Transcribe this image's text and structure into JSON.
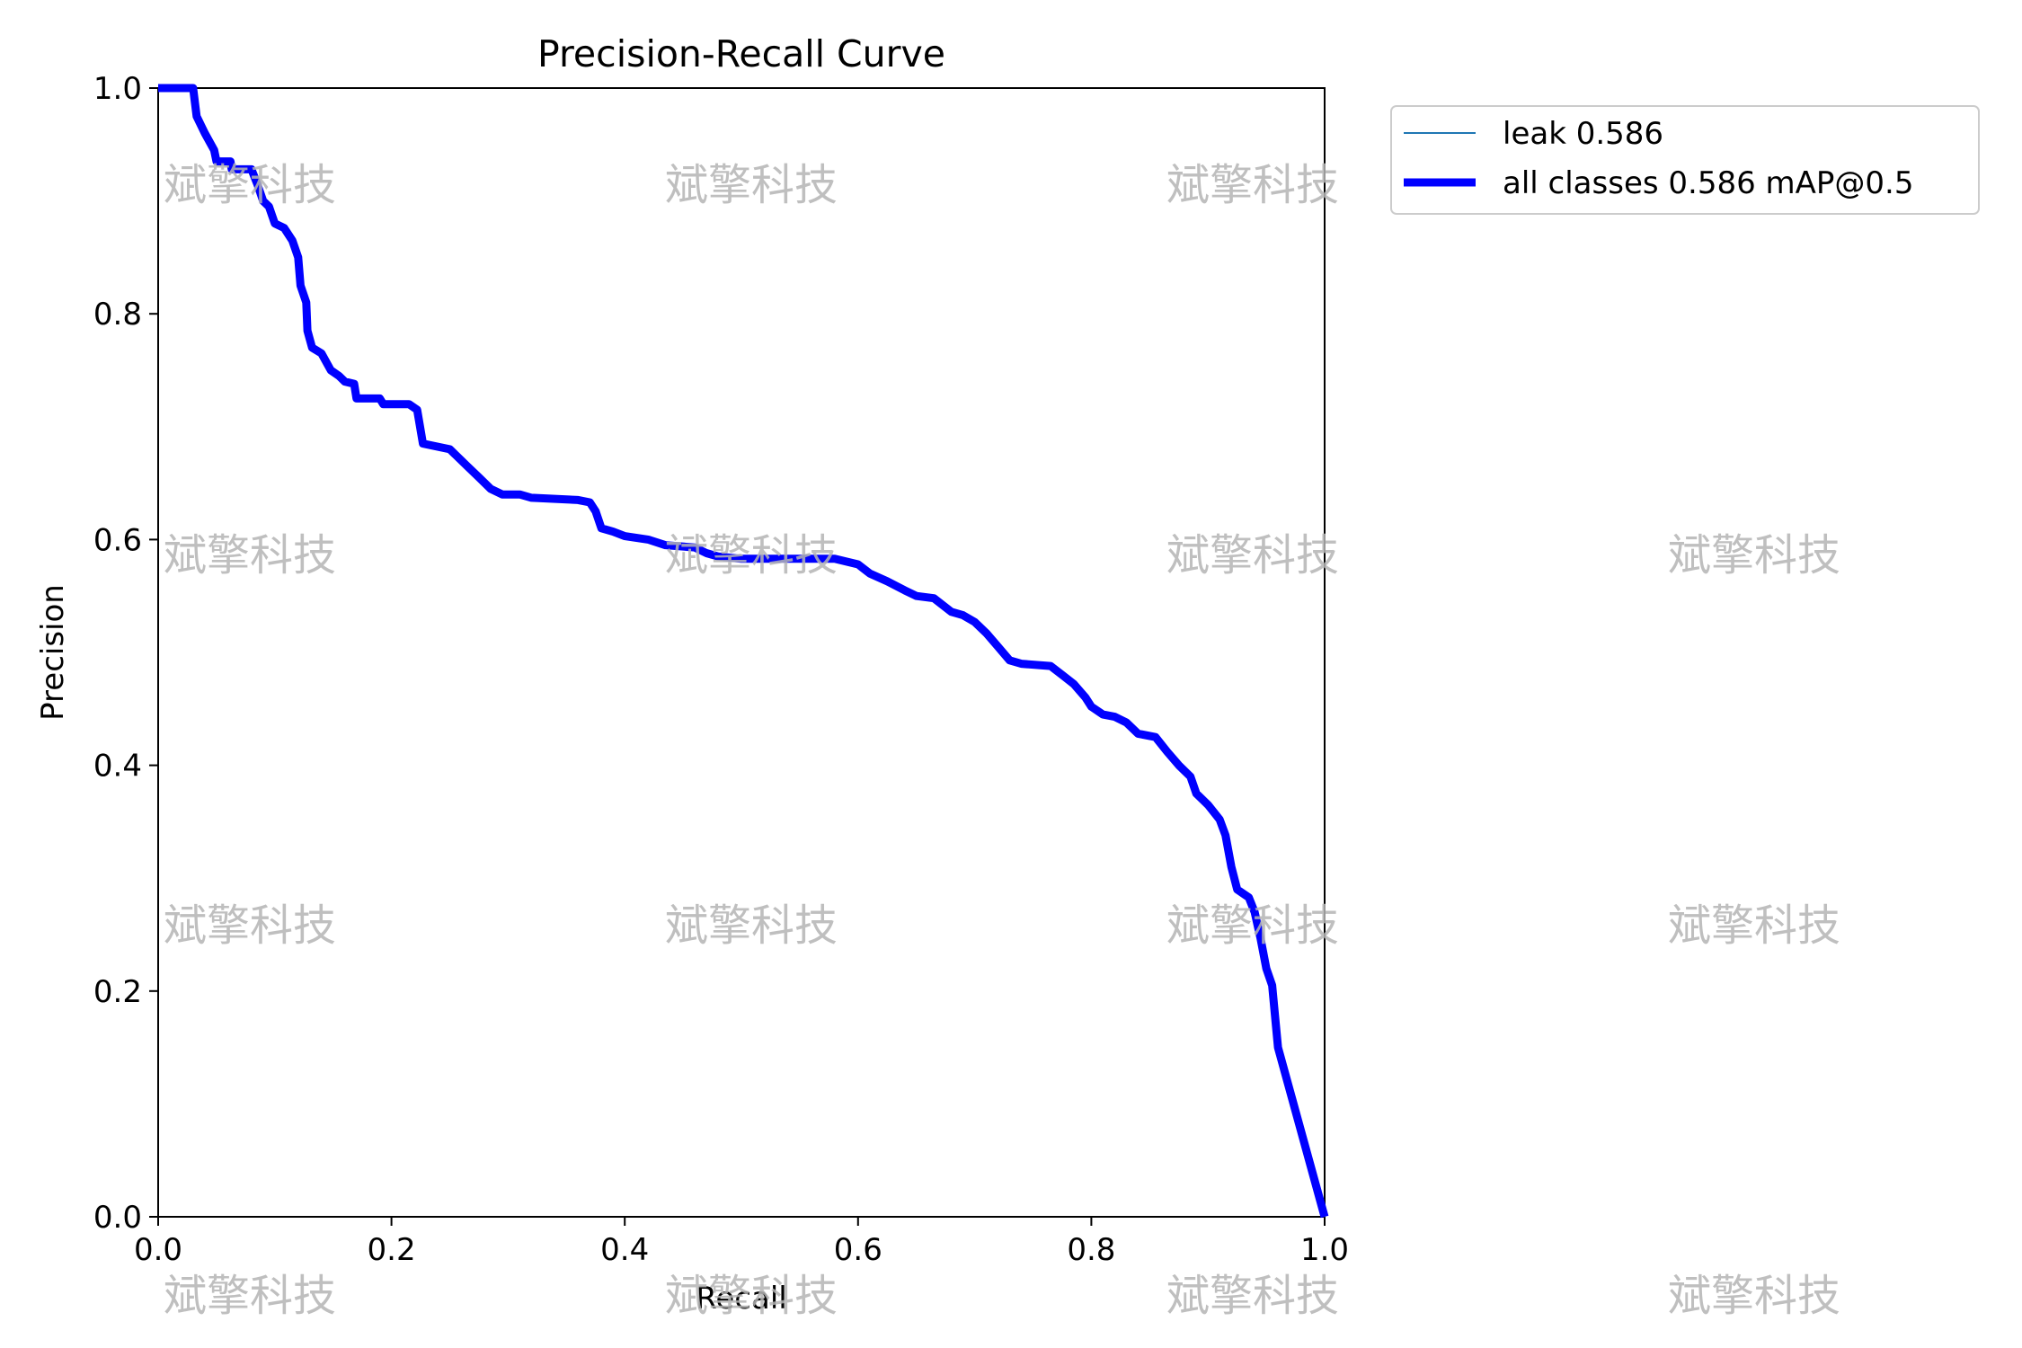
{
  "chart_data": {
    "type": "line",
    "title": "Precision-Recall Curve",
    "xlabel": "Recall",
    "ylabel": "Precision",
    "xlim": [
      0.0,
      1.0
    ],
    "ylim": [
      0.0,
      1.0
    ],
    "x_ticks": [
      "0.0",
      "0.2",
      "0.4",
      "0.6",
      "0.8",
      "1.0"
    ],
    "y_ticks": [
      "0.0",
      "0.2",
      "0.4",
      "0.6",
      "0.8",
      "1.0"
    ],
    "grid": false,
    "legend_position": "outside-top-right",
    "series": [
      {
        "name": "leak 0.586",
        "color": "#1f77b4",
        "style": "thin",
        "points": [
          [
            0.0,
            1.0
          ],
          [
            0.03,
            1.0
          ],
          [
            0.033,
            0.975
          ],
          [
            0.04,
            0.96
          ],
          [
            0.048,
            0.945
          ],
          [
            0.05,
            0.935
          ],
          [
            0.062,
            0.935
          ],
          [
            0.063,
            0.928
          ],
          [
            0.08,
            0.928
          ],
          [
            0.085,
            0.915
          ],
          [
            0.09,
            0.9
          ],
          [
            0.095,
            0.895
          ],
          [
            0.1,
            0.88
          ],
          [
            0.108,
            0.876
          ],
          [
            0.115,
            0.865
          ],
          [
            0.12,
            0.85
          ],
          [
            0.122,
            0.825
          ],
          [
            0.127,
            0.81
          ],
          [
            0.128,
            0.785
          ],
          [
            0.132,
            0.77
          ],
          [
            0.14,
            0.765
          ],
          [
            0.148,
            0.75
          ],
          [
            0.155,
            0.745
          ],
          [
            0.16,
            0.74
          ],
          [
            0.168,
            0.738
          ],
          [
            0.17,
            0.725
          ],
          [
            0.19,
            0.725
          ],
          [
            0.193,
            0.72
          ],
          [
            0.215,
            0.72
          ],
          [
            0.222,
            0.715
          ],
          [
            0.227,
            0.685
          ],
          [
            0.25,
            0.68
          ],
          [
            0.255,
            0.675
          ],
          [
            0.265,
            0.665
          ],
          [
            0.275,
            0.655
          ],
          [
            0.285,
            0.645
          ],
          [
            0.295,
            0.64
          ],
          [
            0.31,
            0.64
          ],
          [
            0.32,
            0.637
          ],
          [
            0.36,
            0.635
          ],
          [
            0.37,
            0.633
          ],
          [
            0.375,
            0.625
          ],
          [
            0.38,
            0.61
          ],
          [
            0.39,
            0.607
          ],
          [
            0.4,
            0.603
          ],
          [
            0.42,
            0.6
          ],
          [
            0.435,
            0.595
          ],
          [
            0.46,
            0.593
          ],
          [
            0.47,
            0.588
          ],
          [
            0.48,
            0.585
          ],
          [
            0.5,
            0.583
          ],
          [
            0.58,
            0.583
          ],
          [
            0.6,
            0.578
          ],
          [
            0.61,
            0.57
          ],
          [
            0.625,
            0.563
          ],
          [
            0.64,
            0.555
          ],
          [
            0.65,
            0.55
          ],
          [
            0.665,
            0.548
          ],
          [
            0.68,
            0.536
          ],
          [
            0.69,
            0.533
          ],
          [
            0.7,
            0.527
          ],
          [
            0.71,
            0.517
          ],
          [
            0.72,
            0.505
          ],
          [
            0.73,
            0.493
          ],
          [
            0.74,
            0.49
          ],
          [
            0.765,
            0.488
          ],
          [
            0.775,
            0.48
          ],
          [
            0.785,
            0.472
          ],
          [
            0.795,
            0.46
          ],
          [
            0.8,
            0.452
          ],
          [
            0.81,
            0.445
          ],
          [
            0.82,
            0.443
          ],
          [
            0.83,
            0.438
          ],
          [
            0.84,
            0.428
          ],
          [
            0.855,
            0.425
          ],
          [
            0.865,
            0.412
          ],
          [
            0.875,
            0.4
          ],
          [
            0.885,
            0.39
          ],
          [
            0.89,
            0.375
          ],
          [
            0.9,
            0.365
          ],
          [
            0.91,
            0.352
          ],
          [
            0.915,
            0.338
          ],
          [
            0.92,
            0.31
          ],
          [
            0.925,
            0.29
          ],
          [
            0.935,
            0.283
          ],
          [
            0.94,
            0.27
          ],
          [
            0.945,
            0.247
          ],
          [
            0.95,
            0.22
          ],
          [
            0.955,
            0.205
          ],
          [
            0.96,
            0.15
          ],
          [
            1.0,
            0.0
          ]
        ]
      },
      {
        "name": "all classes 0.586 mAP@0.5",
        "color": "#0000ff",
        "style": "thick",
        "points": [
          [
            0.0,
            1.0
          ],
          [
            0.03,
            1.0
          ],
          [
            0.033,
            0.975
          ],
          [
            0.04,
            0.96
          ],
          [
            0.048,
            0.945
          ],
          [
            0.05,
            0.935
          ],
          [
            0.062,
            0.935
          ],
          [
            0.063,
            0.928
          ],
          [
            0.08,
            0.928
          ],
          [
            0.085,
            0.915
          ],
          [
            0.09,
            0.9
          ],
          [
            0.095,
            0.895
          ],
          [
            0.1,
            0.88
          ],
          [
            0.108,
            0.876
          ],
          [
            0.115,
            0.865
          ],
          [
            0.12,
            0.85
          ],
          [
            0.122,
            0.825
          ],
          [
            0.127,
            0.81
          ],
          [
            0.128,
            0.785
          ],
          [
            0.132,
            0.77
          ],
          [
            0.14,
            0.765
          ],
          [
            0.148,
            0.75
          ],
          [
            0.155,
            0.745
          ],
          [
            0.16,
            0.74
          ],
          [
            0.168,
            0.738
          ],
          [
            0.17,
            0.725
          ],
          [
            0.19,
            0.725
          ],
          [
            0.193,
            0.72
          ],
          [
            0.215,
            0.72
          ],
          [
            0.222,
            0.715
          ],
          [
            0.227,
            0.685
          ],
          [
            0.25,
            0.68
          ],
          [
            0.255,
            0.675
          ],
          [
            0.265,
            0.665
          ],
          [
            0.275,
            0.655
          ],
          [
            0.285,
            0.645
          ],
          [
            0.295,
            0.64
          ],
          [
            0.31,
            0.64
          ],
          [
            0.32,
            0.637
          ],
          [
            0.36,
            0.635
          ],
          [
            0.37,
            0.633
          ],
          [
            0.375,
            0.625
          ],
          [
            0.38,
            0.61
          ],
          [
            0.39,
            0.607
          ],
          [
            0.4,
            0.603
          ],
          [
            0.42,
            0.6
          ],
          [
            0.435,
            0.595
          ],
          [
            0.46,
            0.593
          ],
          [
            0.47,
            0.588
          ],
          [
            0.48,
            0.585
          ],
          [
            0.5,
            0.583
          ],
          [
            0.58,
            0.583
          ],
          [
            0.6,
            0.578
          ],
          [
            0.61,
            0.57
          ],
          [
            0.625,
            0.563
          ],
          [
            0.64,
            0.555
          ],
          [
            0.65,
            0.55
          ],
          [
            0.665,
            0.548
          ],
          [
            0.68,
            0.536
          ],
          [
            0.69,
            0.533
          ],
          [
            0.7,
            0.527
          ],
          [
            0.71,
            0.517
          ],
          [
            0.72,
            0.505
          ],
          [
            0.73,
            0.493
          ],
          [
            0.74,
            0.49
          ],
          [
            0.765,
            0.488
          ],
          [
            0.775,
            0.48
          ],
          [
            0.785,
            0.472
          ],
          [
            0.795,
            0.46
          ],
          [
            0.8,
            0.452
          ],
          [
            0.81,
            0.445
          ],
          [
            0.82,
            0.443
          ],
          [
            0.83,
            0.438
          ],
          [
            0.84,
            0.428
          ],
          [
            0.855,
            0.425
          ],
          [
            0.865,
            0.412
          ],
          [
            0.875,
            0.4
          ],
          [
            0.885,
            0.39
          ],
          [
            0.89,
            0.375
          ],
          [
            0.9,
            0.365
          ],
          [
            0.91,
            0.352
          ],
          [
            0.915,
            0.338
          ],
          [
            0.92,
            0.31
          ],
          [
            0.925,
            0.29
          ],
          [
            0.935,
            0.283
          ],
          [
            0.94,
            0.27
          ],
          [
            0.945,
            0.247
          ],
          [
            0.95,
            0.22
          ],
          [
            0.955,
            0.205
          ],
          [
            0.96,
            0.15
          ],
          [
            1.0,
            0.0
          ]
        ]
      }
    ]
  },
  "watermark": {
    "text": "斌擎科技"
  }
}
